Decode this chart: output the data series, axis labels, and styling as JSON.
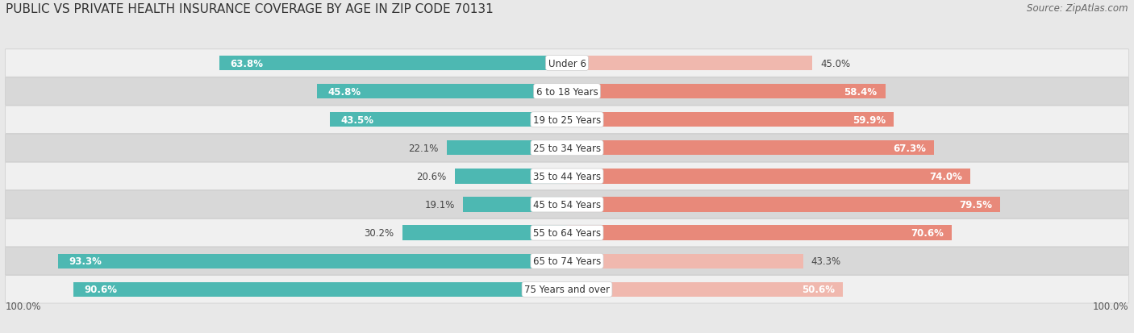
{
  "title": "PUBLIC VS PRIVATE HEALTH INSURANCE COVERAGE BY AGE IN ZIP CODE 70131",
  "source": "Source: ZipAtlas.com",
  "categories": [
    "Under 6",
    "6 to 18 Years",
    "19 to 25 Years",
    "25 to 34 Years",
    "35 to 44 Years",
    "45 to 54 Years",
    "55 to 64 Years",
    "65 to 74 Years",
    "75 Years and over"
  ],
  "public_values": [
    63.8,
    45.8,
    43.5,
    22.1,
    20.6,
    19.1,
    30.2,
    93.3,
    90.6
  ],
  "private_values": [
    45.0,
    58.4,
    59.9,
    67.3,
    74.0,
    79.5,
    70.6,
    43.3,
    50.6
  ],
  "public_color": "#4db8b2",
  "private_color": "#e8897a",
  "private_color_light": "#f0b8ae",
  "background_color": "#e8e8e8",
  "row_bg_dark": "#d8d8d8",
  "row_bg_light": "#f0f0f0",
  "max_value": 100.0,
  "title_fontsize": 11,
  "source_fontsize": 8.5,
  "bar_label_fontsize": 8.5,
  "category_fontsize": 8.5,
  "pub_label_inside_threshold": 40,
  "priv_label_inside_threshold": 50
}
